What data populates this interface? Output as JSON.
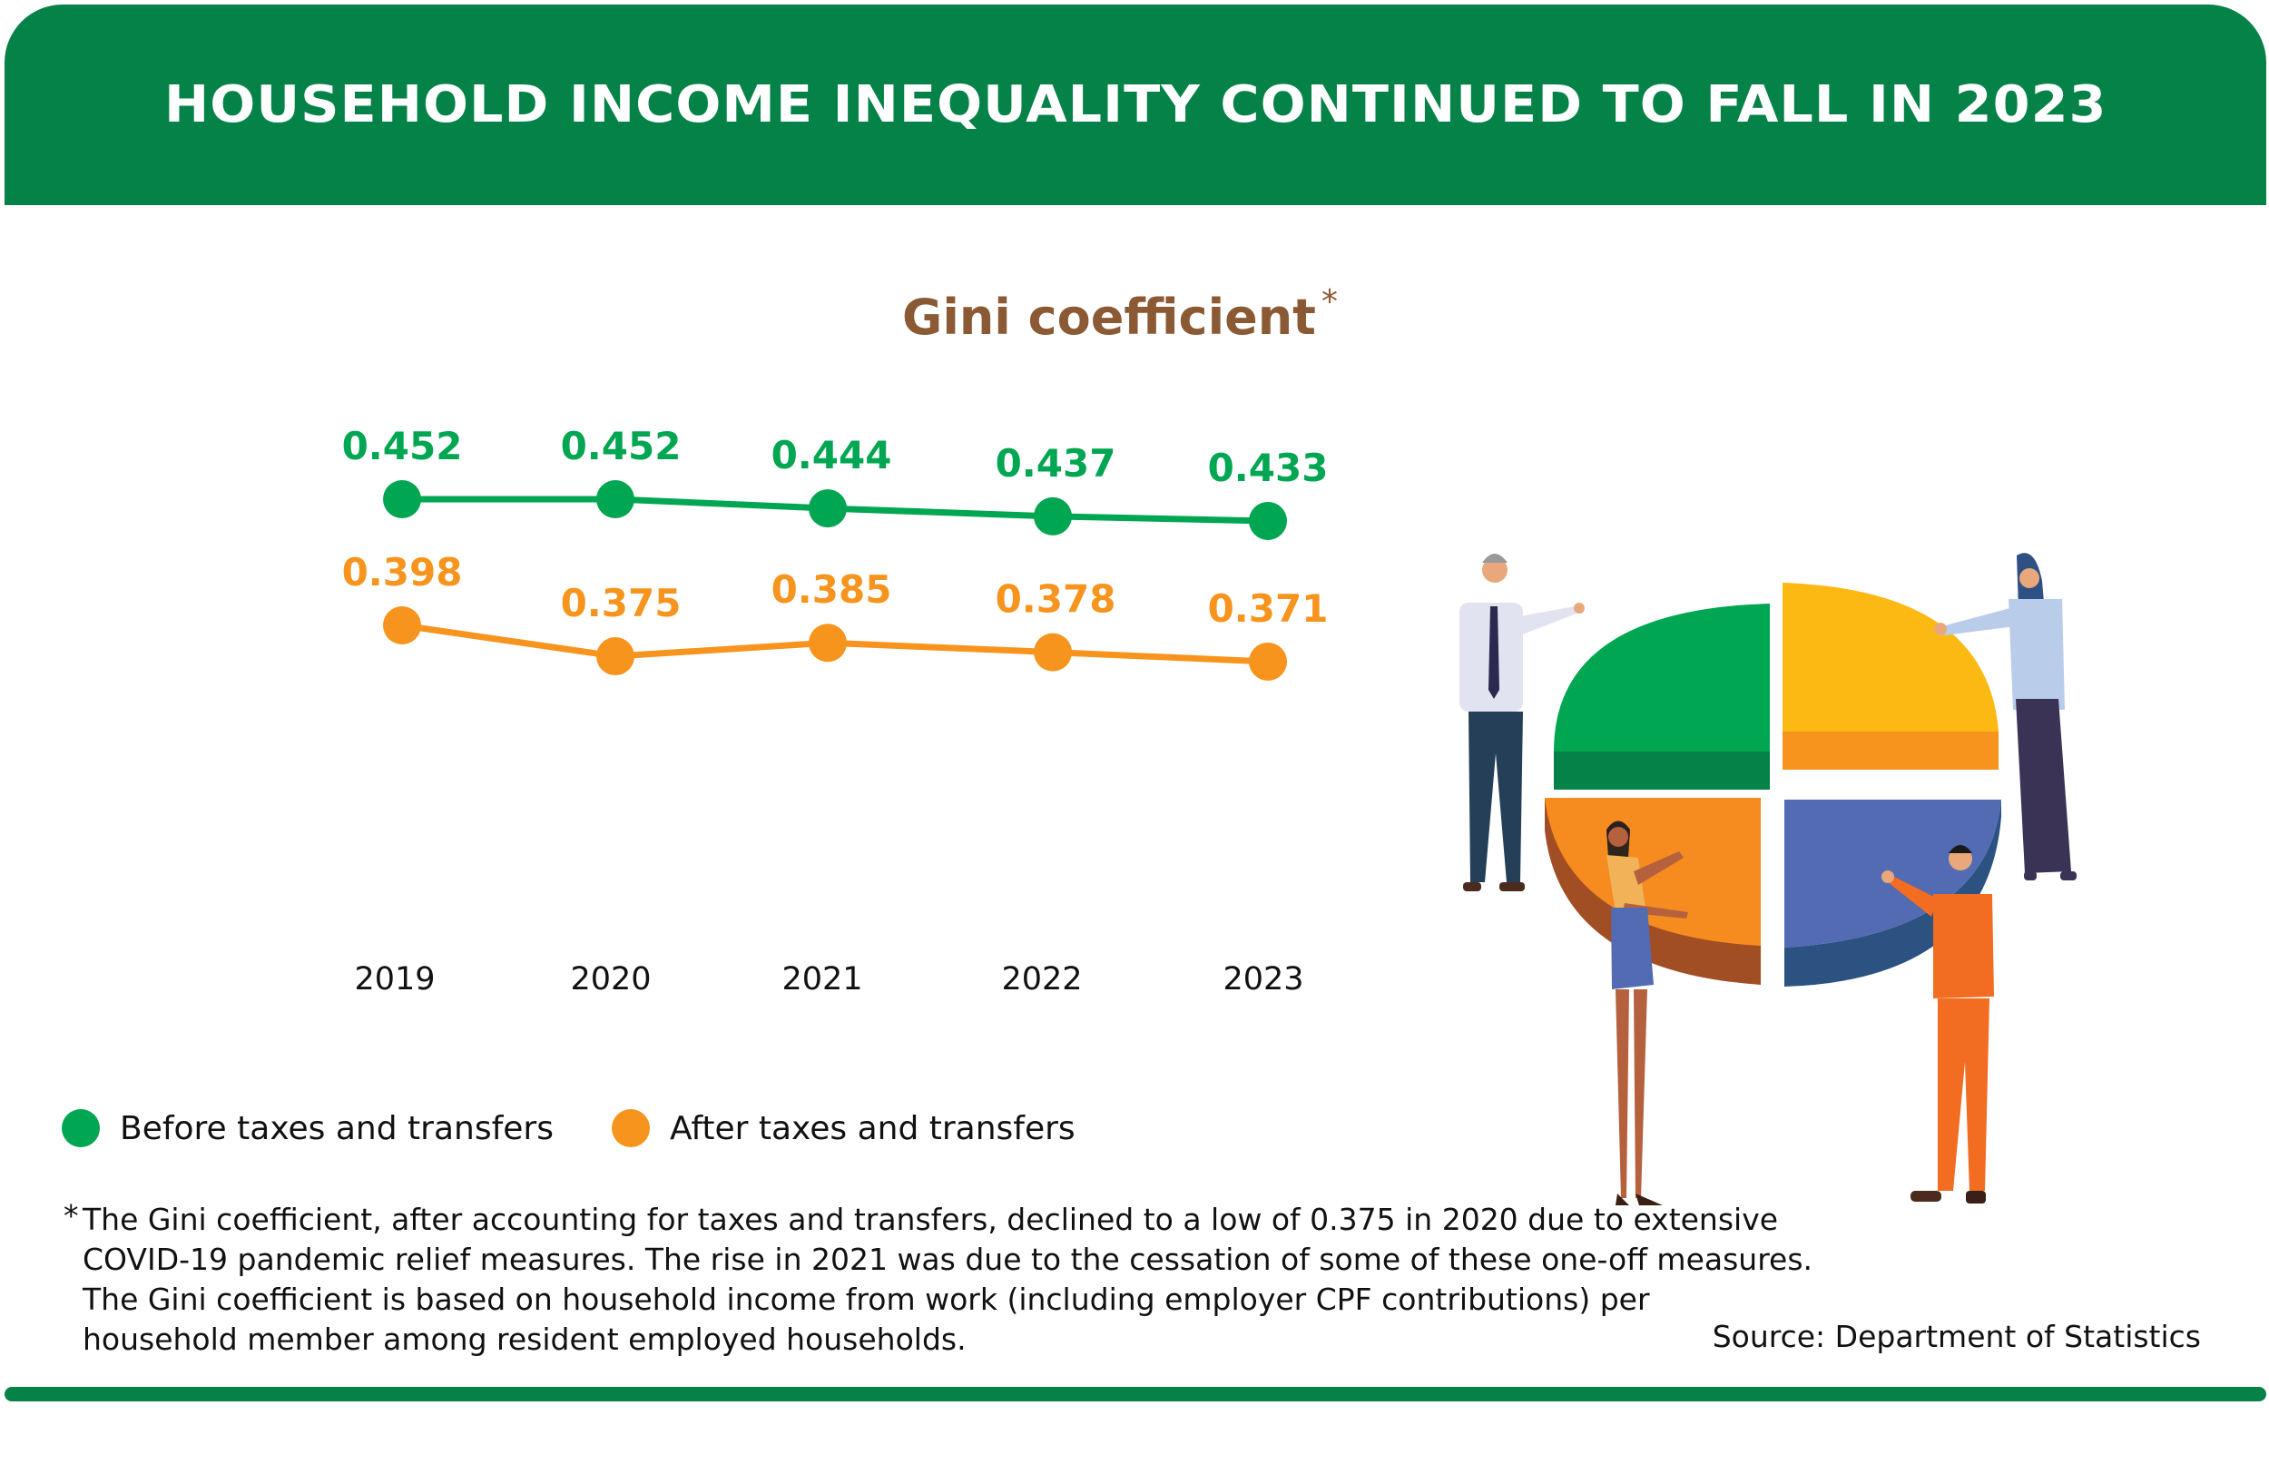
{
  "header": {
    "title": "HOUSEHOLD INCOME INEQUALITY CONTINUED TO FALL IN 2023"
  },
  "chart_data": {
    "type": "line",
    "title": "Gini coefficient",
    "title_marker": "*",
    "categories": [
      "2019",
      "2020",
      "2021",
      "2022",
      "2023"
    ],
    "series": [
      {
        "name": "Before taxes and transfers",
        "values": [
          0.452,
          0.452,
          0.444,
          0.437,
          0.433
        ],
        "labels": [
          "0.452",
          "0.452",
          "0.444",
          "0.437",
          "0.433"
        ],
        "color": "#00a651"
      },
      {
        "name": "After taxes and transfers",
        "values": [
          0.398,
          0.375,
          0.385,
          0.378,
          0.371
        ],
        "labels": [
          "0.398",
          "0.375",
          "0.385",
          "0.378",
          "0.371"
        ],
        "color": "#f7941d"
      }
    ],
    "legend": "bottom-left",
    "grid": false,
    "y_axis_shown": false
  },
  "footnote": {
    "marker": "*",
    "lines": [
      "The Gini coefficient, after accounting for taxes and transfers, declined to a low of 0.375 in 2020 due to extensive",
      "COVID-19 pandemic relief measures. The rise in 2021 was due to the cessation of some of these one-off measures.",
      "The Gini coefficient is based on household income from work (including employer CPF contributions) per",
      "household member among resident employed households."
    ]
  },
  "source": "Source: Department of Statistics",
  "colors": {
    "brand_green": "#058247",
    "title_brown": "#8b5a35",
    "before": "#00a651",
    "after": "#f7941d"
  }
}
